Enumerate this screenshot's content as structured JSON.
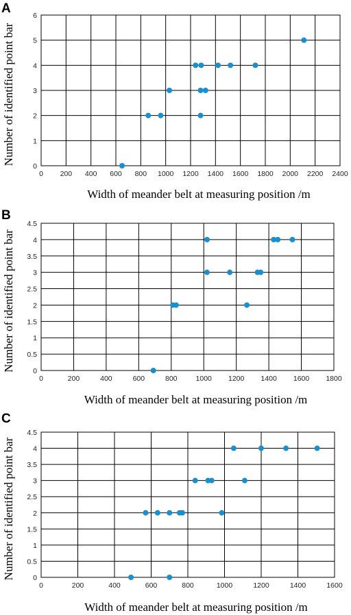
{
  "chart_data": [
    {
      "type": "scatter",
      "panel": "A",
      "xlabel": "Width of meander belt at measuring position /m",
      "ylabel": "Number of identified point bar",
      "xlim": [
        0,
        2400
      ],
      "ylim": [
        0,
        6
      ],
      "xticks": [
        0,
        200,
        400,
        600,
        800,
        1000,
        1200,
        1400,
        1600,
        1800,
        2000,
        2200,
        2400
      ],
      "yticks": [
        0,
        1,
        2,
        3,
        4,
        5,
        6
      ],
      "grid": true,
      "color": "#1a8fcf",
      "points": [
        {
          "x": 650,
          "y": 0
        },
        {
          "x": 860,
          "y": 2
        },
        {
          "x": 960,
          "y": 2
        },
        {
          "x": 1030,
          "y": 3
        },
        {
          "x": 1240,
          "y": 4
        },
        {
          "x": 1285,
          "y": 4
        },
        {
          "x": 1280,
          "y": 3
        },
        {
          "x": 1280,
          "y": 2
        },
        {
          "x": 1320,
          "y": 3
        },
        {
          "x": 1420,
          "y": 4
        },
        {
          "x": 1520,
          "y": 4
        },
        {
          "x": 1720,
          "y": 4
        },
        {
          "x": 2110,
          "y": 5
        }
      ]
    },
    {
      "type": "scatter",
      "panel": "B",
      "xlabel": "Width of meander belt at measuring position /m",
      "ylabel": "Number of identified point bar",
      "xlim": [
        0,
        1800
      ],
      "ylim": [
        0,
        4.5
      ],
      "xticks": [
        0,
        200,
        400,
        600,
        800,
        1000,
        1200,
        1400,
        1600,
        1800
      ],
      "yticks": [
        0,
        0.5,
        1,
        1.5,
        2,
        2.5,
        3,
        3.5,
        4,
        4.5
      ],
      "grid": true,
      "color": "#1a8fcf",
      "points": [
        {
          "x": 690,
          "y": 0
        },
        {
          "x": 810,
          "y": 2
        },
        {
          "x": 830,
          "y": 2
        },
        {
          "x": 1020,
          "y": 4
        },
        {
          "x": 1020,
          "y": 3
        },
        {
          "x": 1160,
          "y": 3
        },
        {
          "x": 1265,
          "y": 2
        },
        {
          "x": 1330,
          "y": 3
        },
        {
          "x": 1350,
          "y": 3
        },
        {
          "x": 1430,
          "y": 4
        },
        {
          "x": 1455,
          "y": 4
        },
        {
          "x": 1545,
          "y": 4
        }
      ]
    },
    {
      "type": "scatter",
      "panel": "C",
      "xlabel": "Width of meander belt at measuring position /m",
      "ylabel": "Number of identified point bar",
      "xlim": [
        0,
        1600
      ],
      "ylim": [
        0,
        4.5
      ],
      "xticks": [
        0,
        200,
        400,
        600,
        800,
        1000,
        1200,
        1400,
        1600
      ],
      "yticks": [
        0,
        0.5,
        1,
        1.5,
        2,
        2.5,
        3,
        3.5,
        4,
        4.5
      ],
      "grid": true,
      "color": "#1a8fcf",
      "points": [
        {
          "x": 490,
          "y": 0
        },
        {
          "x": 700,
          "y": 0
        },
        {
          "x": 570,
          "y": 2
        },
        {
          "x": 635,
          "y": 2
        },
        {
          "x": 700,
          "y": 2
        },
        {
          "x": 755,
          "y": 2
        },
        {
          "x": 770,
          "y": 2
        },
        {
          "x": 985,
          "y": 2
        },
        {
          "x": 840,
          "y": 3
        },
        {
          "x": 910,
          "y": 3
        },
        {
          "x": 930,
          "y": 3
        },
        {
          "x": 1110,
          "y": 3
        },
        {
          "x": 1050,
          "y": 4
        },
        {
          "x": 1200,
          "y": 4
        },
        {
          "x": 1335,
          "y": 4
        },
        {
          "x": 1505,
          "y": 4
        }
      ]
    }
  ]
}
